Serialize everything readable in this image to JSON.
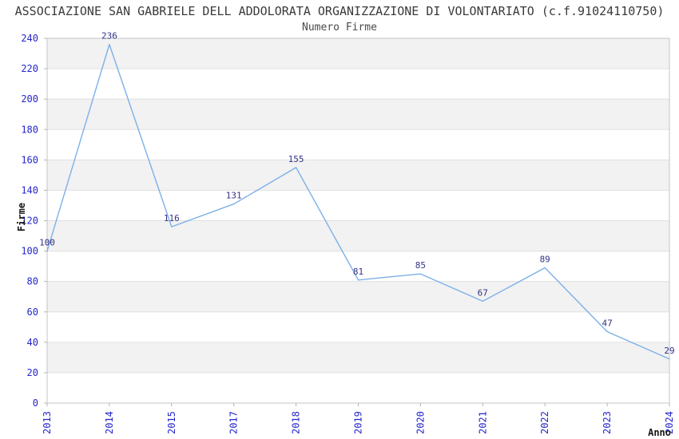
{
  "chart_data": {
    "type": "line",
    "title": "ASSOCIAZIONE SAN GABRIELE DELL ADDOLORATA ORGANIZZAZIONE DI VOLONTARIATO (c.f.91024110750)",
    "subtitle": "Numero Firme",
    "categories": [
      "2013",
      "2014",
      "2015",
      "2017",
      "2018",
      "2019",
      "2020",
      "2021",
      "2022",
      "2023",
      "2024"
    ],
    "values": [
      100,
      236,
      116,
      131,
      155,
      81,
      85,
      67,
      89,
      47,
      29
    ],
    "xlabel": "Anno",
    "ylabel": "Firme",
    "ylim": [
      0,
      240
    ],
    "ytick_step": 20,
    "yticks": [
      0,
      20,
      40,
      60,
      80,
      100,
      120,
      140,
      160,
      180,
      200,
      220,
      240
    ],
    "grid": true,
    "alternating_bands": true,
    "legend": "none",
    "style": {
      "line_color": "#7cb0e8",
      "tick_label_color": "#2525cc",
      "value_label_color": "#323286",
      "band_color": "#f2f2f2",
      "grid_color": "#e0e0e0",
      "frame_color": "#c4c4c4",
      "tick_mark_color": "#b4b4b4",
      "axis_label_color": "#161616",
      "title_color": "#3a3a3a"
    }
  }
}
